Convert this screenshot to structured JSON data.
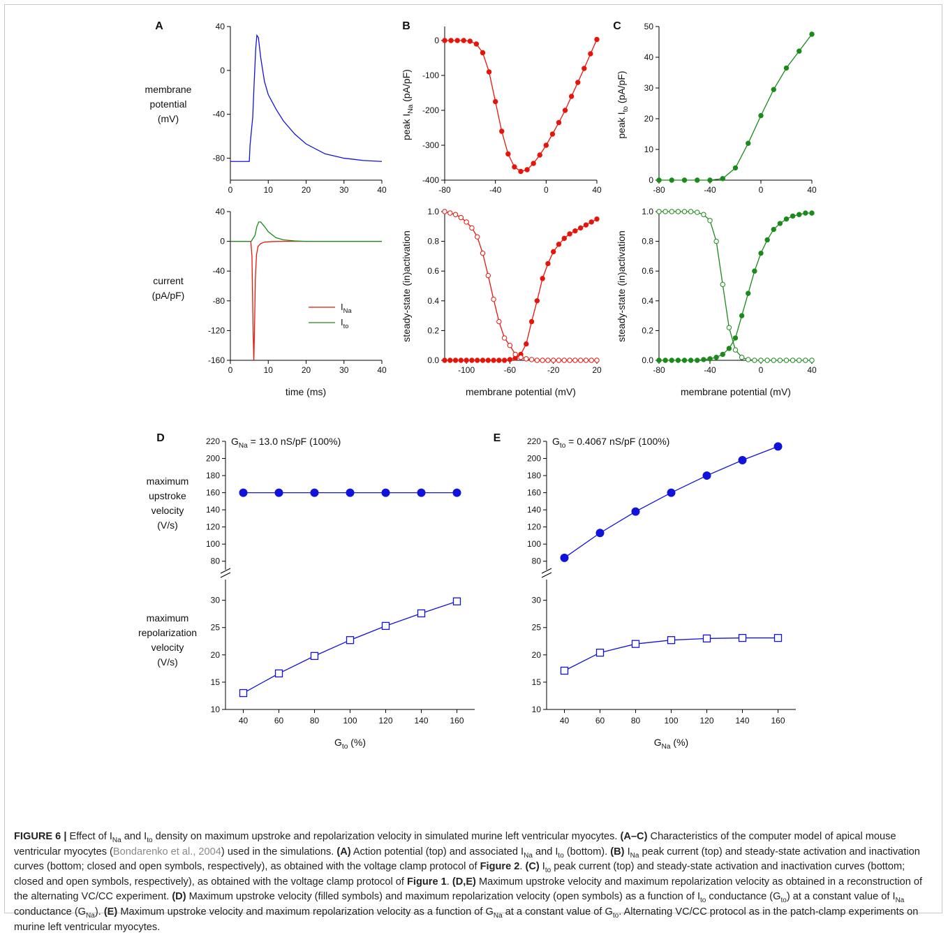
{
  "colors": {
    "red": "#e8140a",
    "green": "#1a8a1a",
    "blue": "#1212dd",
    "axis": "#000000"
  },
  "panels": {
    "A": {
      "label": "A",
      "top_ylabel": [
        "membrane",
        "potential",
        "(mV)"
      ],
      "bottom_ylabel": [
        "current",
        "(pA/pF)"
      ],
      "xlabel": "time (ms)",
      "legend": [
        {
          "name": "I",
          "sub": "Na"
        },
        {
          "name": "I",
          "sub": "to"
        }
      ]
    },
    "B": {
      "label": "B",
      "top_ylabel": {
        "pre": "peak I",
        "sub": "Na",
        "post": " (pA/pF)"
      },
      "bottom_ylabel": "steady-state (in)activation",
      "xlabel": "membrane potential (mV)"
    },
    "C": {
      "label": "C",
      "top_ylabel": {
        "pre": "peak I",
        "sub": "to",
        "post": " (pA/pF)"
      },
      "bottom_ylabel": "steady-state (in)activation",
      "xlabel": "membrane potential (mV)"
    },
    "D": {
      "label": "D",
      "annotation": {
        "pre": "G",
        "sub": "Na",
        "post": " = 13.0 nS/pF (100%)"
      },
      "ylabel_top": [
        "maximum",
        "upstroke",
        "velocity",
        "(V/s)"
      ],
      "ylabel_bottom": [
        "maximum",
        "repolarization",
        "velocity",
        "(V/s)"
      ],
      "xlabel": {
        "pre": "G",
        "sub": "to",
        "post": " (%)"
      }
    },
    "E": {
      "label": "E",
      "annotation": {
        "pre": "G",
        "sub": "to",
        "post": " = 0.4067 nS/pF (100%)"
      },
      "xlabel": {
        "pre": "G",
        "sub": "Na",
        "post": " (%)"
      }
    }
  },
  "chart_data": [
    {
      "panel": "A-top",
      "type": "line",
      "xlim": [
        0,
        40
      ],
      "ylim": [
        -100,
        40
      ],
      "xticks": [
        "0",
        "10",
        "20",
        "30",
        "40"
      ],
      "yticks": [
        "40",
        "0",
        "-40",
        "-80"
      ],
      "series": [
        {
          "color": "blue",
          "x": [
            0,
            5,
            5.2,
            5.7,
            5.9,
            6.3,
            6.7,
            7,
            7.4,
            8,
            9,
            10,
            12,
            14,
            17,
            20,
            25,
            30,
            35,
            40
          ],
          "y": [
            -83,
            -83,
            -68,
            -50,
            -43,
            -10,
            20,
            32,
            30,
            12,
            -10,
            -22,
            -35,
            -46,
            -58,
            -67,
            -76,
            -80,
            -82,
            -83
          ]
        }
      ]
    },
    {
      "panel": "A-bottom",
      "type": "line",
      "xlim": [
        0,
        40
      ],
      "ylim": [
        -160,
        40
      ],
      "xticks": [
        "0",
        "10",
        "20",
        "30",
        "40"
      ],
      "yticks": [
        "40",
        "0",
        "-40",
        "-80",
        "-120",
        "-160"
      ],
      "series": [
        {
          "name": "INa",
          "color": "red",
          "x": [
            0,
            5.4,
            5.7,
            6.0,
            6.2,
            6.4,
            6.6,
            6.9,
            7.3,
            8,
            9,
            11,
            14,
            40
          ],
          "y": [
            0,
            0,
            -20,
            -120,
            -160,
            -110,
            -50,
            -18,
            -7,
            -3,
            -1,
            -0.3,
            0,
            0
          ]
        },
        {
          "name": "Ito",
          "color": "green",
          "x": [
            0,
            5.5,
            6.5,
            7,
            7.5,
            8,
            9,
            10,
            12,
            14,
            17,
            20,
            40
          ],
          "y": [
            0,
            0,
            8,
            20,
            26,
            26,
            20,
            13,
            5,
            2,
            0.5,
            0,
            0
          ]
        }
      ]
    },
    {
      "panel": "B-top",
      "type": "line",
      "xlim": [
        -80,
        40
      ],
      "ylim": [
        -400,
        40
      ],
      "xticks": [
        "-80",
        "-40",
        "0",
        "40"
      ],
      "yticks": [
        "0",
        "-100",
        "-200",
        "-300",
        "-400"
      ],
      "series": [
        {
          "color": "red",
          "marker": "filled",
          "x": [
            -80,
            -75,
            -70,
            -65,
            -60,
            -55,
            -50,
            -45,
            -40,
            -35,
            -30,
            -25,
            -20,
            -15,
            -10,
            -5,
            0,
            5,
            10,
            15,
            20,
            25,
            30,
            35,
            40
          ],
          "y": [
            0,
            0,
            0,
            0,
            -2,
            -10,
            -35,
            -90,
            -175,
            -260,
            -325,
            -362,
            -375,
            -370,
            -352,
            -328,
            -300,
            -268,
            -235,
            -200,
            -160,
            -120,
            -80,
            -38,
            3
          ]
        }
      ]
    },
    {
      "panel": "B-bottom",
      "type": "line",
      "xlim": [
        -120,
        20
      ],
      "ylim": [
        0,
        1
      ],
      "xticks": [
        "-100",
        "-60",
        "-20",
        "20"
      ],
      "yticks": [
        "0.0",
        "0.2",
        "0.4",
        "0.6",
        "0.8",
        "1.0"
      ],
      "series": [
        {
          "name": "activation",
          "color": "red",
          "marker": "filled",
          "x": [
            -120,
            -115,
            -110,
            -105,
            -100,
            -95,
            -90,
            -85,
            -80,
            -75,
            -70,
            -65,
            -60,
            -55,
            -50,
            -45,
            -40,
            -35,
            -30,
            -25,
            -20,
            -15,
            -10,
            -5,
            0,
            5,
            10,
            15,
            20
          ],
          "y": [
            0,
            0,
            0,
            0,
            0,
            0,
            0,
            0,
            0,
            0,
            0,
            0,
            0.005,
            0.015,
            0.04,
            0.11,
            0.26,
            0.4,
            0.55,
            0.65,
            0.73,
            0.78,
            0.82,
            0.85,
            0.87,
            0.89,
            0.91,
            0.93,
            0.95
          ]
        },
        {
          "name": "inactivation",
          "color": "red",
          "marker": "open",
          "x": [
            -120,
            -115,
            -110,
            -105,
            -100,
            -95,
            -90,
            -85,
            -80,
            -75,
            -70,
            -65,
            -60,
            -55,
            -50,
            -45,
            -40,
            -35,
            -30,
            -25,
            -20,
            -15,
            -10,
            -5,
            0,
            5,
            10,
            15,
            20
          ],
          "y": [
            1.0,
            0.99,
            0.98,
            0.96,
            0.93,
            0.89,
            0.83,
            0.72,
            0.57,
            0.41,
            0.26,
            0.15,
            0.1,
            0.04,
            0.02,
            0.01,
            0.005,
            0,
            0,
            0,
            0,
            0,
            0,
            0,
            0,
            0,
            0,
            0,
            0
          ]
        }
      ]
    },
    {
      "panel": "C-top",
      "type": "line",
      "xlim": [
        -80,
        40
      ],
      "ylim": [
        0,
        50
      ],
      "xticks": [
        "-80",
        "-40",
        "0",
        "40"
      ],
      "yticks": [
        "0",
        "10",
        "20",
        "30",
        "40",
        "50"
      ],
      "series": [
        {
          "color": "green",
          "marker": "filled",
          "x": [
            -80,
            -70,
            -60,
            -50,
            -40,
            -30,
            -20,
            -10,
            0,
            10,
            20,
            30,
            40
          ],
          "y": [
            0,
            0,
            0,
            0,
            0,
            0.5,
            4,
            12,
            21,
            29.5,
            36.5,
            42,
            47.5
          ]
        }
      ]
    },
    {
      "panel": "C-bottom",
      "type": "line",
      "xlim": [
        -80,
        40
      ],
      "ylim": [
        0,
        1
      ],
      "xticks": [
        "-80",
        "-40",
        "0",
        "40"
      ],
      "yticks": [
        "0.0",
        "0.2",
        "0.4",
        "0.6",
        "0.8",
        "1.0"
      ],
      "series": [
        {
          "name": "activation",
          "color": "green",
          "marker": "filled",
          "x": [
            -80,
            -75,
            -70,
            -65,
            -60,
            -55,
            -50,
            -45,
            -40,
            -35,
            -30,
            -25,
            -20,
            -15,
            -10,
            -5,
            0,
            5,
            10,
            15,
            20,
            25,
            30,
            35,
            40
          ],
          "y": [
            0,
            0,
            0,
            0,
            0,
            0,
            0,
            0.005,
            0.01,
            0.02,
            0.04,
            0.08,
            0.15,
            0.3,
            0.45,
            0.6,
            0.72,
            0.81,
            0.88,
            0.92,
            0.95,
            0.97,
            0.98,
            0.99,
            0.99
          ]
        },
        {
          "name": "inactivation",
          "color": "green",
          "marker": "open",
          "x": [
            -80,
            -75,
            -70,
            -65,
            -60,
            -55,
            -50,
            -45,
            -40,
            -35,
            -30,
            -25,
            -20,
            -15,
            -10,
            -5,
            0,
            5,
            10,
            15,
            20,
            25,
            30,
            35,
            40
          ],
          "y": [
            1.0,
            1.0,
            1.0,
            1.0,
            1.0,
            1.0,
            0.995,
            0.98,
            0.94,
            0.8,
            0.51,
            0.22,
            0.07,
            0.02,
            0.005,
            0,
            0,
            0,
            0,
            0,
            0,
            0,
            0,
            0,
            0
          ]
        }
      ]
    },
    {
      "panel": "D",
      "type": "line",
      "x": [
        40,
        60,
        80,
        100,
        120,
        140,
        160
      ],
      "xlim": [
        30,
        170
      ],
      "xticks": [
        "40",
        "60",
        "80",
        "100",
        "120",
        "140",
        "160"
      ],
      "upper": {
        "ylim": [
          70,
          220
        ],
        "yticks": [
          "80",
          "100",
          "120",
          "140",
          "160",
          "180",
          "200",
          "220"
        ],
        "series": [
          {
            "name": "maximum upstroke velocity",
            "color": "blue",
            "marker": "filled",
            "values": [
              160,
              160,
              160,
              160,
              160,
              160,
              160
            ]
          }
        ]
      },
      "lower": {
        "ylim": [
          10,
          32
        ],
        "yticks": [
          "10",
          "15",
          "20",
          "25",
          "30"
        ],
        "series": [
          {
            "name": "maximum repolarization velocity",
            "color": "blue",
            "marker": "open-square",
            "values": [
              13.0,
              16.6,
              19.8,
              22.7,
              25.3,
              27.6,
              29.8
            ]
          }
        ]
      }
    },
    {
      "panel": "E",
      "type": "line",
      "x": [
        40,
        60,
        80,
        100,
        120,
        140,
        160
      ],
      "xlim": [
        30,
        170
      ],
      "xticks": [
        "40",
        "60",
        "80",
        "100",
        "120",
        "140",
        "160"
      ],
      "upper": {
        "ylim": [
          70,
          220
        ],
        "yticks": [
          "80",
          "100",
          "120",
          "140",
          "160",
          "180",
          "200",
          "220"
        ],
        "series": [
          {
            "name": "maximum upstroke velocity",
            "color": "blue",
            "marker": "filled",
            "values": [
              84,
              113,
              138,
              160,
              180,
              198,
              214
            ]
          }
        ]
      },
      "lower": {
        "ylim": [
          10,
          32
        ],
        "yticks": [
          "10",
          "15",
          "20",
          "25",
          "30"
        ],
        "series": [
          {
            "name": "maximum repolarization velocity",
            "color": "blue",
            "marker": "open-square",
            "values": [
              17.1,
              20.4,
              22.0,
              22.7,
              23.0,
              23.1,
              23.1
            ]
          }
        ]
      }
    }
  ],
  "caption": {
    "figure_label": "FIGURE 6",
    "sep": " | ",
    "title_parts": [
      "Effect of I",
      "Na",
      " and I",
      "to",
      " density on maximum upstroke and repolarization velocity in simulated murine left ventricular myocytes. "
    ],
    "s1_label": "(A–C)",
    "s1_text_a": " Characteristics of the computer model of apical mouse ventricular myocytes (",
    "s1_cite": "Bondarenko et al., 2004",
    "s1_text_b": ") used in the simulations. ",
    "s2_label": "(A)",
    "s2_text": [
      " Action potential (top) and associated I",
      "Na",
      " and I",
      "to",
      " (bottom). "
    ],
    "s3_label": "(B)",
    "s3_text": [
      " I",
      "Na",
      " peak current (top) and steady-state activation and inactivation curves (bottom; closed and open symbols, respectively), as obtained with the voltage clamp protocol of "
    ],
    "s3_fig": "Figure 2",
    "s3_end": ". ",
    "s4_label": "(C)",
    "s4_text": [
      " I",
      "to",
      " peak current (top) and steady-state activation and inactivation curves (bottom; closed and open symbols, respectively), as obtained with the voltage clamp protocol of "
    ],
    "s4_fig": "Figure 1",
    "s4_end": ". ",
    "s5_label": "(D,E)",
    "s5_text": " Maximum upstroke velocity and maximum repolarization velocity as obtained in a reconstruction of the alternating VC/CC experiment. ",
    "s6_label": "(D)",
    "s6_text": [
      " Maximum upstroke velocity (filled symbols) and maximum repolarization velocity (open symbols) as a function of I",
      "to",
      " conductance (G",
      "to",
      ") at a constant value of I",
      "Na",
      " conductance (G",
      "Na",
      "). "
    ],
    "s7_label": "(E)",
    "s7_text": [
      " Maximum upstroke velocity and maximum repolarization velocity as a function of G",
      "Na",
      " at a constant value of G",
      "to",
      ". Alternating VC/CC protocol as in the patch-clamp experiments on murine left ventricular myocytes."
    ]
  }
}
